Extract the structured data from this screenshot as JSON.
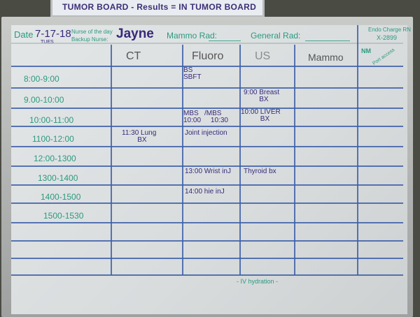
{
  "top_board": {
    "text": "TUMOR BOARD - Results = IN TUMOR BOARD"
  },
  "header": {
    "date_label": "Date",
    "date": "7-17-18",
    "day": "TUES",
    "nurse_of_day_label": "Nurse of the day",
    "backup_nurse_label": "Backup Nurse:",
    "nurse_name": "Jayne",
    "mammo_rad_label": "Mammo Rad:",
    "general_rad_label": "General Rad:",
    "endo_label": "Endo Charge RN",
    "endo_ext": "X-2899"
  },
  "columns": [
    "CT",
    "Fluoro",
    "US",
    "Mammo"
  ],
  "nm_label": "NM",
  "port_label": "Port access",
  "times": [
    "8:00-9:00",
    "9.00-10:00",
    "10:00-11:00",
    "1100-12:00",
    "12:00-1300",
    "1300-1400",
    "1400-1500",
    "1500-1530"
  ],
  "entries": {
    "fluoro_1": "BS\nSBFT",
    "us_2": "9:00 Breast\n        BX",
    "fluoro_3": "MBS   /MBS\n10:00     10:30",
    "us_3": "10:00 LIVER\n          BX",
    "ct_4": "11:30 Lung\n        BX",
    "fluoro_4": "Joint injection",
    "fluoro_6": "13:00 Wrist inJ",
    "us_6": "Thyroid bx",
    "fluoro_7": "14:00 hie inJ"
  },
  "footer": "- IV hydration -",
  "colors": {
    "marker_green": "#2c9a7f",
    "marker_purple": "#37297a",
    "grid_blue": "#3d5fa8"
  }
}
